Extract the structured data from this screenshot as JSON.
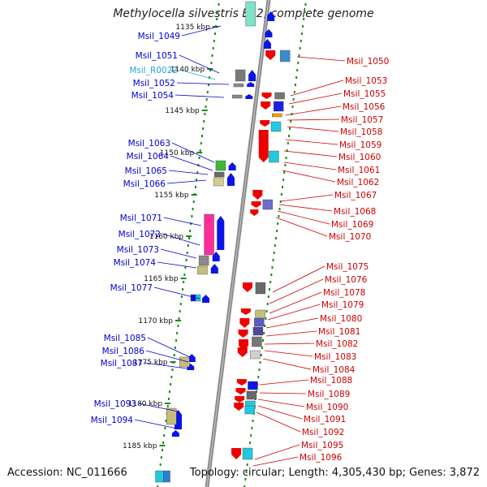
{
  "title": "Methylocella silvestris BL2, complete genome",
  "footer": {
    "accession": "Accession: NC_011666",
    "summary": "Topology: circular; Length: 4,305,430 bp; Genes: 3,872"
  },
  "colors": {
    "backbone": "#8c8c8c",
    "ruler": "#1a8a1a",
    "left_label": "#0000cc",
    "right_label": "#cc0000",
    "rna_label": "#22aadd"
  },
  "ticks": [
    "1135 kbp",
    "1140 kbp",
    "1145 kbp",
    "1150 kbp",
    "1155 kbp",
    "1160 kbp",
    "1165 kbp",
    "1170 kbp",
    "1175 kbp",
    "1180 kbp",
    "1185 kbp"
  ],
  "left_labels": [
    {
      "text": "Msil_1049",
      "kind": "gene"
    },
    {
      "text": "Msil_1051",
      "kind": "gene"
    },
    {
      "text": "Msil_R0022",
      "kind": "rna"
    },
    {
      "text": "Msil_1052",
      "kind": "gene"
    },
    {
      "text": "Msil_1054",
      "kind": "gene"
    },
    {
      "text": "Msil_1063",
      "kind": "gene"
    },
    {
      "text": "Msil_1064",
      "kind": "gene"
    },
    {
      "text": "Msil_1065",
      "kind": "gene"
    },
    {
      "text": "Msil_1066",
      "kind": "gene"
    },
    {
      "text": "Msil_1071",
      "kind": "gene"
    },
    {
      "text": "Msil_1072",
      "kind": "gene"
    },
    {
      "text": "Msil_1073",
      "kind": "gene"
    },
    {
      "text": "Msil_1074",
      "kind": "gene"
    },
    {
      "text": "Msil_1077",
      "kind": "gene"
    },
    {
      "text": "Msil_1085",
      "kind": "gene"
    },
    {
      "text": "Msil_1086",
      "kind": "gene"
    },
    {
      "text": "Msil_1087",
      "kind": "gene"
    },
    {
      "text": "Msil_1093",
      "kind": "gene"
    },
    {
      "text": "Msil_1094",
      "kind": "gene"
    }
  ],
  "right_labels": [
    "Msil_1050",
    "Msil_1053",
    "Msil_1055",
    "Msil_1056",
    "Msil_1057",
    "Msil_1058",
    "Msil_1059",
    "Msil_1060",
    "Msil_1061",
    "Msil_1062",
    "Msil_1067",
    "Msil_1068",
    "Msil_1069",
    "Msil_1070",
    "Msil_1075",
    "Msil_1076",
    "Msil_1078",
    "Msil_1079",
    "Msil_1080",
    "Msil_1081",
    "Msil_1082",
    "Msil_1083",
    "Msil_1084",
    "Msil_1088",
    "Msil_1089",
    "Msil_1090",
    "Msil_1091",
    "Msil_1092",
    "Msil_1095",
    "Msil_1096"
  ]
}
